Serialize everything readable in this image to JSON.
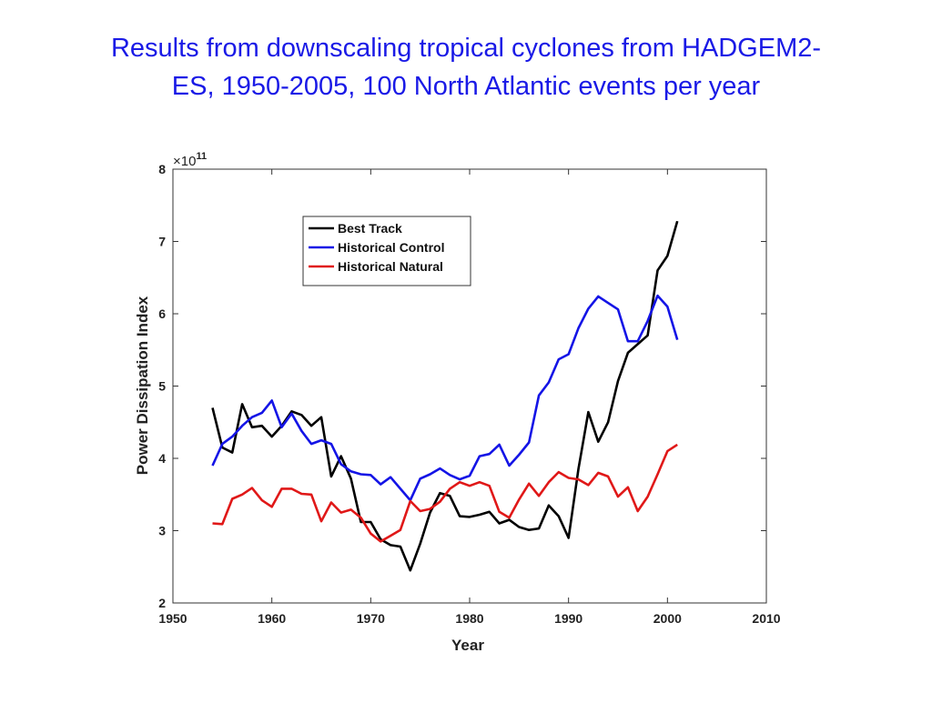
{
  "chart_data": {
    "type": "line",
    "title_lines": [
      "Results from downscaling tropical cyclones from HADGEM2-",
      "ES, 1950-2005, 100 North Atlantic events per year"
    ],
    "x_label": "Year",
    "y_label": "Power Dissipation Index",
    "y_multiplier": {
      "base": "×10",
      "exponent": "11"
    },
    "x": [
      1954,
      1955,
      1956,
      1957,
      1958,
      1959,
      1960,
      1961,
      1962,
      1963,
      1964,
      1965,
      1966,
      1967,
      1968,
      1969,
      1970,
      1971,
      1972,
      1973,
      1974,
      1975,
      1976,
      1977,
      1978,
      1979,
      1980,
      1981,
      1982,
      1983,
      1984,
      1985,
      1986,
      1987,
      1988,
      1989,
      1990,
      1991,
      1992,
      1993,
      1994,
      1995,
      1996,
      1997,
      1998,
      1999,
      2000,
      2001
    ],
    "series": [
      {
        "name": "Best Track",
        "color": "#000000",
        "values": [
          4.7,
          4.15,
          4.08,
          4.75,
          4.43,
          4.45,
          4.3,
          4.45,
          4.65,
          4.6,
          4.45,
          4.57,
          3.75,
          4.03,
          3.72,
          3.12,
          3.12,
          2.88,
          2.8,
          2.78,
          2.45,
          2.82,
          3.25,
          3.52,
          3.48,
          3.2,
          3.19,
          3.22,
          3.26,
          3.1,
          3.15,
          3.05,
          3.01,
          3.03,
          3.35,
          3.2,
          2.9,
          3.85,
          4.64,
          4.23,
          4.5,
          5.07,
          5.46,
          5.58,
          5.7,
          6.6,
          6.8,
          7.28
        ]
      },
      {
        "name": "Historical Control",
        "color": "#1414e6",
        "values": [
          3.9,
          4.2,
          4.3,
          4.45,
          4.57,
          4.63,
          4.8,
          4.43,
          4.62,
          4.38,
          4.2,
          4.25,
          4.2,
          3.92,
          3.82,
          3.78,
          3.77,
          3.64,
          3.74,
          3.58,
          3.42,
          3.72,
          3.78,
          3.86,
          3.77,
          3.71,
          3.76,
          4.03,
          4.06,
          4.19,
          3.9,
          4.05,
          4.22,
          4.87,
          5.05,
          5.37,
          5.44,
          5.8,
          6.07,
          6.24,
          6.15,
          6.06,
          5.62,
          5.62,
          5.9,
          6.25,
          6.1,
          5.64
        ]
      },
      {
        "name": "Historical Natural",
        "color": "#e01818",
        "values": [
          3.1,
          3.09,
          3.44,
          3.5,
          3.59,
          3.42,
          3.33,
          3.58,
          3.58,
          3.51,
          3.5,
          3.13,
          3.39,
          3.25,
          3.29,
          3.18,
          2.96,
          2.85,
          2.93,
          3.01,
          3.41,
          3.27,
          3.3,
          3.4,
          3.58,
          3.67,
          3.62,
          3.67,
          3.62,
          3.26,
          3.18,
          3.43,
          3.65,
          3.48,
          3.67,
          3.81,
          3.73,
          3.71,
          3.63,
          3.8,
          3.75,
          3.47,
          3.6,
          3.27,
          3.47,
          3.78,
          4.1,
          4.19
        ]
      }
    ],
    "xlim": [
      1950,
      2010
    ],
    "xticks": [
      1950,
      1960,
      1970,
      1980,
      1990,
      2000,
      2010
    ],
    "ylim": [
      2,
      8
    ],
    "yticks": [
      2,
      3,
      4,
      5,
      6,
      7,
      8
    ],
    "legend_loc": "upper left",
    "grid": false
  }
}
